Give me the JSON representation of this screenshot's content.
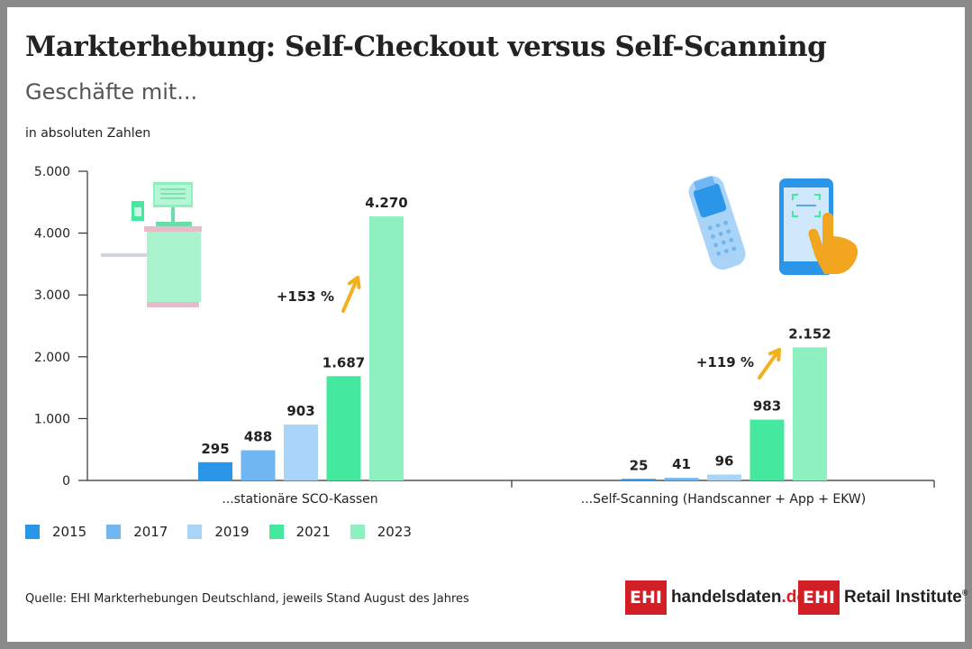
{
  "header": {
    "title": "Markterhebung: Self-Checkout versus Self-Scanning",
    "subtitle": "Geschäfte mit...",
    "unit_label": "in absoluten Zahlen"
  },
  "footer": {
    "source": "Quelle: EHI Markterhebungen Deutschland, jeweils Stand August des Jahres"
  },
  "logos": {
    "handelsdaten": {
      "box": "EHI",
      "name": "handelsdaten",
      "suffix": ".de"
    },
    "retail_institute": {
      "box": "EHI",
      "name": "Retail Institute",
      "mark": "®"
    }
  },
  "legend": [
    {
      "label": "2015",
      "color": "#2b96e8"
    },
    {
      "label": "2017",
      "color": "#6fb6f2"
    },
    {
      "label": "2019",
      "color": "#a9d3f7"
    },
    {
      "label": "2021",
      "color": "#44e89f"
    },
    {
      "label": "2023",
      "color": "#8ef0c1"
    }
  ],
  "icons": [
    "self-checkout-kiosk-icon",
    "handheld-scanner-icon",
    "smartphone-scan-icon"
  ],
  "chart_data": {
    "type": "bar",
    "categories": [
      "...stationäre SCO-Kassen",
      "...Self-Scanning (Handscanner + App + EKW)"
    ],
    "series": [
      {
        "name": "2015",
        "values": [
          295,
          25
        ],
        "labels": [
          "295",
          "25"
        ]
      },
      {
        "name": "2017",
        "values": [
          488,
          41
        ],
        "labels": [
          "488",
          "41"
        ]
      },
      {
        "name": "2019",
        "values": [
          903,
          96
        ],
        "labels": [
          "903",
          "96"
        ]
      },
      {
        "name": "2021",
        "values": [
          1687,
          983
        ],
        "labels": [
          "1.687",
          "983"
        ]
      },
      {
        "name": "2023",
        "values": [
          4270,
          2152
        ],
        "labels": [
          "4.270",
          "2.152"
        ]
      }
    ],
    "ylim": [
      0,
      5000
    ],
    "yticks": [
      0,
      1000,
      2000,
      3000,
      4000,
      5000
    ],
    "ytick_labels": [
      "0",
      "1.000",
      "2.000",
      "3.000",
      "4.000",
      "5.000"
    ],
    "annotations": [
      "+153 %",
      "+119 %"
    ],
    "grid": false,
    "legend_position": "bottom-left"
  }
}
